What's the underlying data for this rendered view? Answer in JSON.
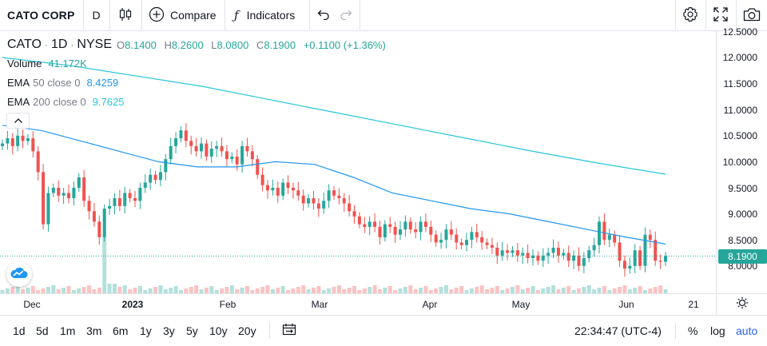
{
  "toolbar": {
    "symbol": "CATO CORP",
    "interval": "D",
    "compare_label": "Compare",
    "indicators_label": "Indicators",
    "icons": [
      "bar-chart-type-icon",
      "plus-circle-icon",
      "fx-icon",
      "undo-icon",
      "redo-icon",
      "gear-icon",
      "fullscreen-icon",
      "camera-icon"
    ]
  },
  "legend": {
    "ticker": "CATO",
    "interval": "1D",
    "exchange": "NYSE",
    "open_key": "O",
    "open": "8.1400",
    "high_key": "H",
    "high": "8.2600",
    "low_key": "L",
    "low": "8.0800",
    "close_key": "C",
    "close": "8.1900",
    "change": "+0.1100 (+1.36%)",
    "volume_name": "Volume",
    "volume_value": "41.172K",
    "ema50_name": "EMA",
    "ema50_params": "50 close 0",
    "ema50_value": "8.4259",
    "ema200_name": "EMA",
    "ema200_params": "200 close 0",
    "ema200_value": "9.7625"
  },
  "colors": {
    "up": "#26a69a",
    "down": "#ef5350",
    "ema50": "#2196f3",
    "ema200": "#26c6da",
    "accent": "#2962ff"
  },
  "price_axis": {
    "ticks": [
      "12.5000",
      "12.0000",
      "11.5000",
      "11.0000",
      "10.5000",
      "10.0000",
      "9.5000",
      "9.0000",
      "8.5000",
      "8.0000"
    ],
    "last_price": "8.1900"
  },
  "time_axis": {
    "labels": [
      "Dec",
      "2023",
      "Feb",
      "Mar",
      "Apr",
      "May",
      "Jun",
      "21"
    ]
  },
  "bottom_bar": {
    "ranges": [
      "1d",
      "5d",
      "1m",
      "3m",
      "6m",
      "1y",
      "3y",
      "5y",
      "10y",
      "20y"
    ],
    "clock": "22:34:47 (UTC-4)",
    "percent": "%",
    "log": "log",
    "auto": "auto"
  },
  "chart_data": {
    "type": "candlestick",
    "ylim": [
      7.9,
      12.6
    ],
    "closes": [
      10.35,
      10.45,
      10.3,
      10.5,
      10.4,
      10.45,
      10.2,
      9.8,
      8.8,
      9.4,
      9.5,
      9.35,
      9.4,
      9.3,
      9.5,
      9.7,
      9.25,
      9.05,
      8.85,
      8.55,
      9.1,
      9.15,
      9.3,
      9.15,
      9.4,
      9.3,
      9.25,
      9.5,
      9.6,
      9.75,
      9.65,
      9.8,
      10.05,
      10.3,
      10.45,
      10.6,
      10.4,
      10.3,
      10.2,
      10.35,
      10.1,
      10.25,
      10.3,
      10.2,
      10.05,
      10.1,
      9.95,
      10.3,
      10.2,
      10.05,
      9.75,
      9.55,
      9.45,
      9.5,
      9.35,
      9.6,
      9.5,
      9.45,
      9.35,
      9.2,
      9.3,
      9.2,
      9.1,
      9.25,
      9.45,
      9.35,
      9.3,
      9.2,
      9.05,
      8.95,
      8.8,
      8.75,
      8.85,
      8.75,
      8.55,
      8.8,
      8.75,
      8.6,
      8.7,
      8.85,
      8.7,
      8.65,
      8.85,
      8.75,
      8.6,
      8.45,
      8.5,
      8.7,
      8.6,
      8.45,
      8.4,
      8.5,
      8.65,
      8.55,
      8.45,
      8.4,
      8.35,
      8.2,
      8.3,
      8.25,
      8.3,
      8.2,
      8.25,
      8.15,
      8.2,
      8.1,
      8.2,
      8.25,
      8.35,
      8.2,
      8.25,
      8.1,
      8.2,
      8.0,
      8.15,
      8.3,
      8.4,
      8.85,
      8.5,
      8.6,
      8.45,
      8.1,
      7.95,
      8.0,
      8.3,
      8.0,
      8.6,
      8.5,
      8.1,
      8.08,
      8.19
    ],
    "ema50": [
      10.7,
      10.6,
      10.4,
      10.2,
      10.0,
      9.9,
      9.9,
      10.0,
      9.95,
      9.7,
      9.4,
      9.25,
      9.1,
      9.0,
      8.85,
      8.7,
      8.55,
      8.42
    ],
    "ema200": [
      12.0,
      11.85,
      11.65,
      11.45,
      11.2,
      10.95,
      10.7,
      10.45,
      10.2,
      9.97,
      9.76
    ]
  }
}
